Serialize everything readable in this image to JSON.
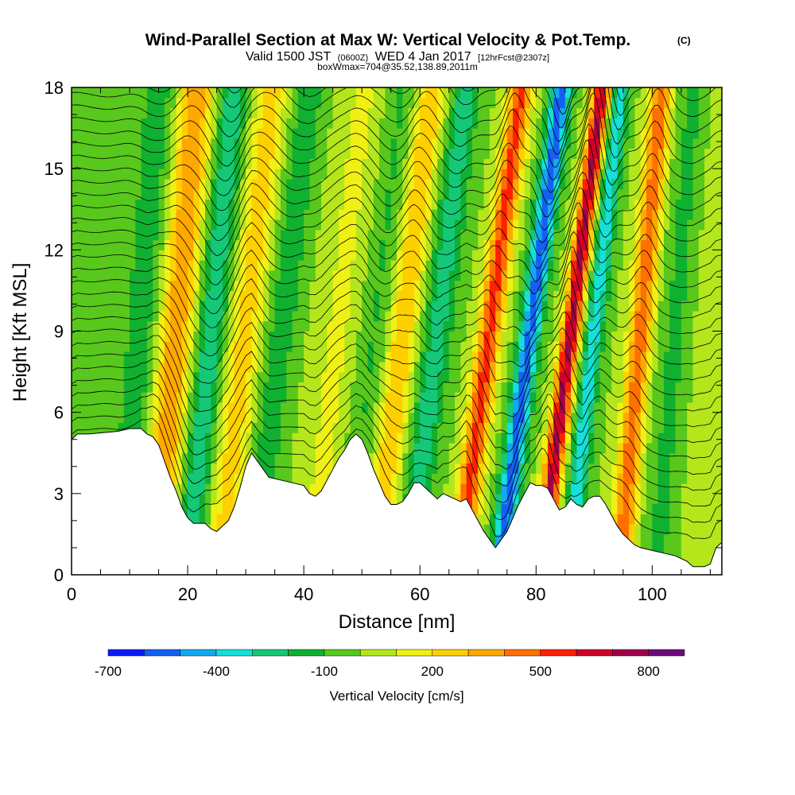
{
  "header": {
    "title": "Wind-Parallel Section at Max W: Vertical Velocity & Pot.Temp.",
    "title_mark": "(C)",
    "valid_prefix": "Valid 1500 JST",
    "valid_utc": "(0600Z)",
    "valid_date": "WED 4 Jan 2017",
    "forecast": "[12hrFcst@2307z]",
    "box_info": "boxWmax=704@35.52,138.89,2011m"
  },
  "chart_data": {
    "type": "heatmap",
    "xlabel": "Distance [nm]",
    "ylabel": "Height [Kft MSL]",
    "xlim": [
      0,
      112
    ],
    "ylim": [
      0,
      18
    ],
    "x_ticks": [
      0,
      20,
      40,
      60,
      80,
      100
    ],
    "y_ticks": [
      0,
      3,
      6,
      9,
      12,
      15,
      18
    ],
    "colorbar": {
      "title": "Vertical Velocity [cm/s]",
      "labels": [
        -700,
        -400,
        -100,
        200,
        500,
        800
      ],
      "levels": [
        -700,
        -600,
        -500,
        -400,
        -300,
        -200,
        -100,
        0,
        100,
        200,
        300,
        400,
        500,
        600,
        700,
        800,
        900
      ],
      "colors": [
        "#0a1cff",
        "#1460f5",
        "#14a8f0",
        "#14e0d8",
        "#14c878",
        "#10b030",
        "#58c81c",
        "#b4e61c",
        "#f0f014",
        "#ffd000",
        "#ffa800",
        "#ff7000",
        "#ff2000",
        "#d0002a",
        "#a0004a",
        "#6e0a7a"
      ]
    },
    "terrain_kft": [
      [
        0,
        5.0
      ],
      [
        1,
        5.2
      ],
      [
        3,
        5.2
      ],
      [
        8,
        5.3
      ],
      [
        10,
        5.4
      ],
      [
        12,
        5.4
      ],
      [
        13,
        5.2
      ],
      [
        14,
        5.1
      ],
      [
        15,
        4.8
      ],
      [
        16,
        4.2
      ],
      [
        17,
        3.6
      ],
      [
        18,
        3.1
      ],
      [
        19,
        2.5
      ],
      [
        20,
        2.1
      ],
      [
        21,
        1.9
      ],
      [
        23,
        1.9
      ],
      [
        24,
        1.7
      ],
      [
        25,
        1.6
      ],
      [
        26,
        1.8
      ],
      [
        27,
        2.0
      ],
      [
        28,
        2.5
      ],
      [
        29,
        3.2
      ],
      [
        30,
        4.0
      ],
      [
        31,
        4.5
      ],
      [
        32,
        4.2
      ],
      [
        33,
        3.9
      ],
      [
        34,
        3.6
      ],
      [
        36,
        3.5
      ],
      [
        38,
        3.4
      ],
      [
        40,
        3.3
      ],
      [
        41,
        3.0
      ],
      [
        42,
        2.9
      ],
      [
        43,
        3.1
      ],
      [
        44,
        3.5
      ],
      [
        45,
        3.9
      ],
      [
        46,
        4.3
      ],
      [
        47,
        4.6
      ],
      [
        48,
        5.0
      ],
      [
        49,
        5.2
      ],
      [
        50,
        5.0
      ],
      [
        51,
        4.5
      ],
      [
        52,
        3.9
      ],
      [
        53,
        3.4
      ],
      [
        54,
        2.9
      ],
      [
        55,
        2.6
      ],
      [
        56,
        2.6
      ],
      [
        57,
        2.7
      ],
      [
        58,
        3.0
      ],
      [
        59,
        3.4
      ],
      [
        60,
        3.4
      ],
      [
        61,
        3.2
      ],
      [
        62,
        3.0
      ],
      [
        63,
        2.8
      ],
      [
        64,
        3.0
      ],
      [
        65,
        2.9
      ],
      [
        66,
        2.8
      ],
      [
        67,
        2.7
      ],
      [
        68,
        2.8
      ],
      [
        69,
        2.4
      ],
      [
        70,
        2.0
      ],
      [
        71,
        1.6
      ],
      [
        72,
        1.3
      ],
      [
        73,
        1.0
      ],
      [
        74,
        1.3
      ],
      [
        75,
        1.6
      ],
      [
        76,
        2.1
      ],
      [
        77,
        2.6
      ],
      [
        78,
        3.0
      ],
      [
        79,
        3.4
      ],
      [
        80,
        3.3
      ],
      [
        81,
        3.3
      ],
      [
        82,
        3.2
      ],
      [
        83,
        2.8
      ],
      [
        84,
        2.4
      ],
      [
        85,
        2.5
      ],
      [
        86,
        2.8
      ],
      [
        87,
        2.6
      ],
      [
        88,
        2.5
      ],
      [
        89,
        2.8
      ],
      [
        90,
        2.9
      ],
      [
        91,
        2.9
      ],
      [
        92,
        2.6
      ],
      [
        93,
        2.2
      ],
      [
        94,
        1.8
      ],
      [
        95,
        1.5
      ],
      [
        96,
        1.3
      ],
      [
        97,
        1.1
      ],
      [
        98,
        1.0
      ],
      [
        100,
        0.9
      ],
      [
        102,
        0.8
      ],
      [
        104,
        0.7
      ],
      [
        106,
        0.5
      ],
      [
        107,
        0.3
      ],
      [
        109,
        0.3
      ],
      [
        110,
        0.4
      ],
      [
        111,
        1.0
      ],
      [
        112,
        1.2
      ]
    ],
    "w_bands": [
      {
        "x0": 4,
        "tilt": 0.3,
        "amp": -80,
        "width": 4.0
      },
      {
        "x0": 12,
        "tilt": 0.35,
        "amp": -160,
        "width": 3.0
      },
      {
        "x0": 18,
        "tilt": 0.4,
        "amp": 380,
        "width": 3.0
      },
      {
        "x0": 24,
        "tilt": 0.45,
        "amp": -290,
        "width": 2.5
      },
      {
        "x0": 30,
        "tilt": 0.5,
        "amp": 250,
        "width": 3.0
      },
      {
        "x0": 36,
        "tilt": 0.55,
        "amp": -160,
        "width": 3.0
      },
      {
        "x0": 46,
        "tilt": 0.5,
        "amp": 120,
        "width": 4.0
      },
      {
        "x0": 52,
        "tilt": 0.55,
        "amp": -120,
        "width": 3.0
      },
      {
        "x0": 57,
        "tilt": 0.55,
        "amp": 300,
        "width": 2.5
      },
      {
        "x0": 63,
        "tilt": 0.55,
        "amp": -260,
        "width": 2.5
      },
      {
        "x0": 72,
        "tilt": 0.6,
        "amp": 540,
        "width": 2.0
      },
      {
        "x0": 79,
        "tilt": 0.6,
        "amp": -560,
        "width": 1.8
      },
      {
        "x0": 86,
        "tilt": 0.6,
        "amp": 720,
        "width": 1.6
      },
      {
        "x0": 90,
        "tilt": 0.5,
        "amp": -380,
        "width": 1.6
      },
      {
        "x0": 98,
        "tilt": 0.4,
        "amp": 470,
        "width": 2.0
      },
      {
        "x0": 104,
        "tilt": 0.35,
        "amp": -120,
        "width": 3.0
      },
      {
        "x0": 110,
        "tilt": 0.3,
        "amp": 80,
        "width": 3.0
      }
    ]
  }
}
